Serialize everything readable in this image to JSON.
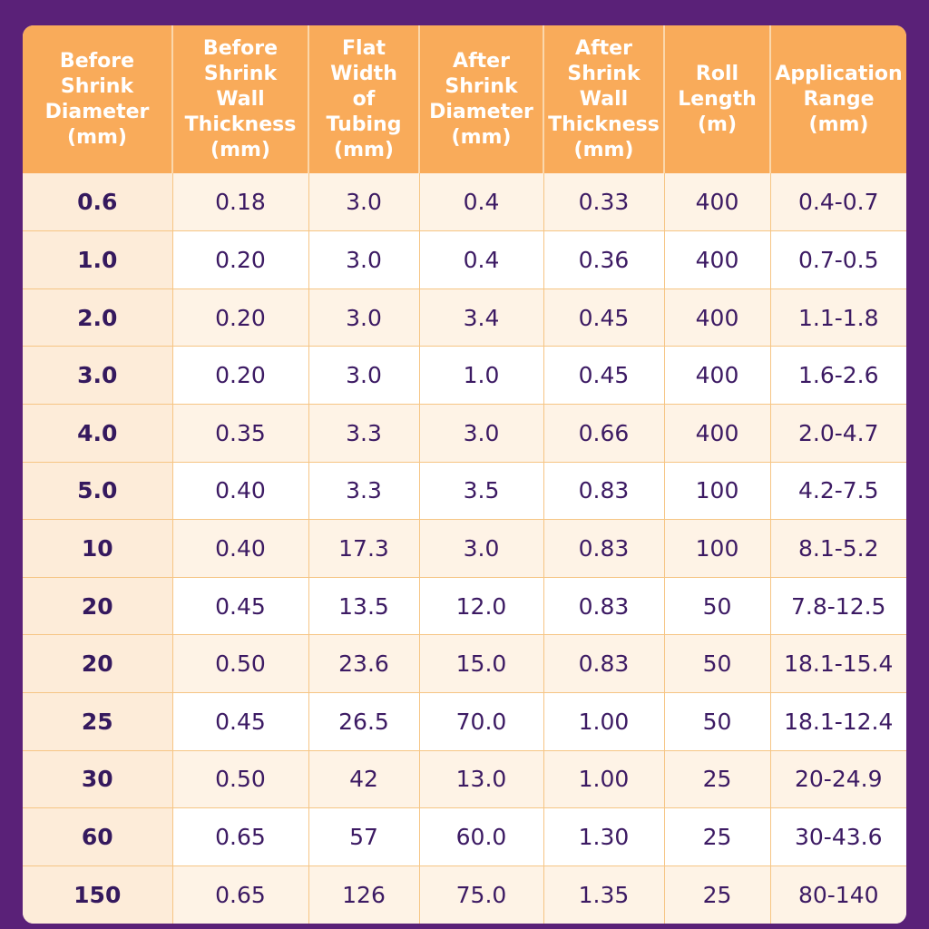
{
  "table": {
    "headers": [
      "Before\nShrink\nDiameter\n(mm)",
      "Before\nShrink\nWall\nThickness\n(mm)",
      "Flat\nWidth\nof Tubing\n(mm)",
      "After\nShrink\nDiameter\n(mm)",
      "After\nShrink\nWall\nThickness\n(mm)",
      "Roll\nLength\n(m)",
      "Application\nRange\n(mm)"
    ],
    "rows": [
      [
        "0.6",
        "0.18",
        "3.0",
        "0.4",
        "0.33",
        "400",
        "0.4-0.7"
      ],
      [
        "1.0",
        "0.20",
        "3.0",
        "0.4",
        "0.36",
        "400",
        "0.7-0.5"
      ],
      [
        "2.0",
        "0.20",
        "3.0",
        "3.4",
        "0.45",
        "400",
        "1.1-1.8"
      ],
      [
        "3.0",
        "0.20",
        "3.0",
        "1.0",
        "0.45",
        "400",
        "1.6-2.6"
      ],
      [
        "4.0",
        "0.35",
        "3.3",
        "3.0",
        "0.66",
        "400",
        "2.0-4.7"
      ],
      [
        "5.0",
        "0.40",
        "3.3",
        "3.5",
        "0.83",
        "100",
        "4.2-7.5"
      ],
      [
        "10",
        "0.40",
        "17.3",
        "3.0",
        "0.83",
        "100",
        "8.1-5.2"
      ],
      [
        "20",
        "0.45",
        "13.5",
        "12.0",
        "0.83",
        "50",
        "7.8-12.5"
      ],
      [
        "20",
        "0.50",
        "23.6",
        "15.0",
        "0.83",
        "50",
        "18.1-15.4"
      ],
      [
        "25",
        "0.45",
        "26.5",
        "70.0",
        "1.00",
        "50",
        "18.1-12.4"
      ],
      [
        "30",
        "0.50",
        "42",
        "13.0",
        "1.00",
        "25",
        "20-24.9"
      ],
      [
        "60",
        "0.65",
        "57",
        "60.0",
        "1.30",
        "25",
        "30-43.6"
      ],
      [
        "150",
        "0.65",
        "126",
        "75.0",
        "1.35",
        "25",
        "80-140"
      ]
    ]
  },
  "colors": {
    "background": "#5a2178",
    "header": "#f9ab5a",
    "header_text": "#ffffff",
    "row_alt": "#fef3e6",
    "first_column": "#fdecd9",
    "grid": "#f6c584",
    "body_text": "#3c1a63"
  }
}
